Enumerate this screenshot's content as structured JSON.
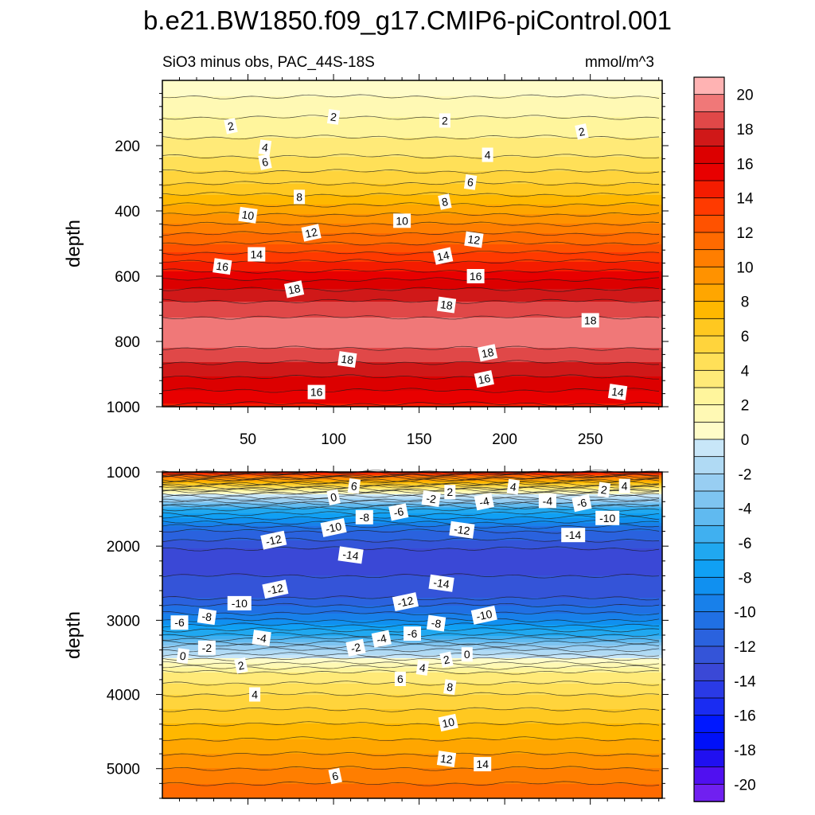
{
  "chart_data": {
    "type": "heatmap",
    "title": "b.e21.BW1850.f09_g17.CMIP6-piControl.001",
    "colorbar": {
      "labels": [
        "20",
        "18",
        "16",
        "14",
        "12",
        "10",
        "8",
        "6",
        "4",
        "2",
        "0",
        "-2",
        "-4",
        "-6",
        "-8",
        "-10",
        "-12",
        "-14",
        "-16",
        "-18",
        "-20"
      ],
      "levels_top_to_bottom": [
        21,
        20,
        19,
        18,
        17,
        16,
        15,
        14,
        13,
        12,
        11,
        10,
        9,
        8,
        7,
        6,
        5,
        4,
        3,
        2,
        1,
        0,
        -1,
        -2,
        -3,
        -4,
        -5,
        -6,
        -7,
        -8,
        -9,
        -10,
        -11,
        -12,
        -13,
        -14,
        -15,
        -16,
        -17,
        -18,
        -19,
        -20,
        -21
      ],
      "colors_top_to_bottom": [
        "#ffb3b3",
        "#f07878",
        "#e04848",
        "#d01818",
        "#dc0000",
        "#e80000",
        "#f41c00",
        "#ff3a00",
        "#ff5200",
        "#ff6a00",
        "#ff7e00",
        "#ff9200",
        "#ffa600",
        "#ffb800",
        "#ffc820",
        "#ffd43c",
        "#ffe058",
        "#ffea78",
        "#fff59c",
        "#fff9b4",
        "#fffcc8",
        "#c8e6f8",
        "#b0daf4",
        "#98cef2",
        "#7ec4f0",
        "#60baf0",
        "#40b0f0",
        "#20a8f0",
        "#10a0f4",
        "#1090f0",
        "#1880ea",
        "#2070e4",
        "#2a62de",
        "#3454d8",
        "#3a48d6",
        "#2a3ae6",
        "#1a2cf2",
        "#0018ff",
        "#0010f8",
        "#2010f0",
        "#5010f0",
        "#7020f0"
      ]
    },
    "panels": [
      {
        "subtitle": "SiO3 minus obs, PAC_44S-18S",
        "units": "mmol/m^3",
        "ylabel": "depth",
        "xlabel": "",
        "xlim": [
          0,
          292
        ],
        "ylim": [
          1000,
          0
        ],
        "xticks": [
          50,
          100,
          150,
          200,
          250
        ],
        "yticks": [
          200,
          400,
          600,
          800,
          1000
        ],
        "profile": {
          "depth": [
            0,
            50,
            100,
            150,
            200,
            250,
            300,
            350,
            400,
            450,
            500,
            550,
            600,
            650,
            700,
            750,
            800,
            850,
            900,
            950,
            1000
          ],
          "value": [
            0.5,
            1.0,
            1.8,
            2.6,
            3.4,
            4.3,
            5.5,
            7.0,
            8.6,
            10.3,
            12.0,
            13.8,
            15.6,
            17.3,
            18.6,
            19.4,
            19.5,
            18.3,
            17.2,
            16.0,
            14.8
          ]
        },
        "contour_labels": [
          {
            "text": "2",
            "x": 40,
            "depth": 140
          },
          {
            "text": "2",
            "x": 100,
            "depth": 112
          },
          {
            "text": "2",
            "x": 165,
            "depth": 123
          },
          {
            "text": "2",
            "x": 245,
            "depth": 157
          },
          {
            "text": "4",
            "x": 60,
            "depth": 205
          },
          {
            "text": "4",
            "x": 190,
            "depth": 228
          },
          {
            "text": "6",
            "x": 60,
            "depth": 250
          },
          {
            "text": "6",
            "x": 180,
            "depth": 312
          },
          {
            "text": "8",
            "x": 80,
            "depth": 357
          },
          {
            "text": "8",
            "x": 165,
            "depth": 372
          },
          {
            "text": "10",
            "x": 50,
            "depth": 413
          },
          {
            "text": "10",
            "x": 140,
            "depth": 430
          },
          {
            "text": "12",
            "x": 87,
            "depth": 467
          },
          {
            "text": "12",
            "x": 182,
            "depth": 488
          },
          {
            "text": "14",
            "x": 55,
            "depth": 533
          },
          {
            "text": "14",
            "x": 164,
            "depth": 538
          },
          {
            "text": "16",
            "x": 35,
            "depth": 570
          },
          {
            "text": "16",
            "x": 183,
            "depth": 600
          },
          {
            "text": "18",
            "x": 77,
            "depth": 640
          },
          {
            "text": "18",
            "x": 166,
            "depth": 688
          },
          {
            "text": "18",
            "x": 250,
            "depth": 735
          },
          {
            "text": "18",
            "x": 190,
            "depth": 835
          },
          {
            "text": "18",
            "x": 108,
            "depth": 855
          },
          {
            "text": "16",
            "x": 90,
            "depth": 955
          },
          {
            "text": "16",
            "x": 188,
            "depth": 915
          },
          {
            "text": "14",
            "x": 266,
            "depth": 955
          }
        ]
      },
      {
        "subtitle": "",
        "units": "",
        "ylabel": "depth",
        "xlabel": "",
        "xlim": [
          0,
          292
        ],
        "ylim": [
          5400,
          1000
        ],
        "xticks": [
          50,
          100,
          150,
          200,
          250
        ],
        "yticks": [
          1000,
          2000,
          3000,
          4000,
          5000
        ],
        "profile": {
          "depth": [
            1000,
            1100,
            1300,
            1500,
            1800,
            2100,
            2400,
            2700,
            3000,
            3200,
            3400,
            3550,
            3700,
            4000,
            4300,
            4600,
            5000,
            5400
          ],
          "value": [
            15,
            9,
            0,
            -6,
            -11,
            -13.5,
            -13,
            -12,
            -9,
            -6,
            -2,
            0.5,
            3,
            5,
            6.5,
            8,
            10,
            12
          ]
        },
        "contour_labels": [
          {
            "text": "0",
            "x": 100,
            "depth": 1340
          },
          {
            "text": "6",
            "x": 112,
            "depth": 1190
          },
          {
            "text": "-8",
            "x": 118,
            "depth": 1610
          },
          {
            "text": "-6",
            "x": 138,
            "depth": 1540
          },
          {
            "text": "-2",
            "x": 157,
            "depth": 1360
          },
          {
            "text": "2",
            "x": 168,
            "depth": 1270
          },
          {
            "text": "-4",
            "x": 188,
            "depth": 1400
          },
          {
            "text": "4",
            "x": 205,
            "depth": 1200
          },
          {
            "text": "-4",
            "x": 225,
            "depth": 1390
          },
          {
            "text": "-6",
            "x": 245,
            "depth": 1420
          },
          {
            "text": "2",
            "x": 258,
            "depth": 1240
          },
          {
            "text": "4",
            "x": 270,
            "depth": 1190
          },
          {
            "text": "-10",
            "x": 100,
            "depth": 1750
          },
          {
            "text": "-12",
            "x": 175,
            "depth": 1780
          },
          {
            "text": "-10",
            "x": 260,
            "depth": 1620
          },
          {
            "text": "-12",
            "x": 65,
            "depth": 1920
          },
          {
            "text": "-14",
            "x": 110,
            "depth": 2120
          },
          {
            "text": "-14",
            "x": 240,
            "depth": 1850
          },
          {
            "text": "-12",
            "x": 66,
            "depth": 2580
          },
          {
            "text": "-14",
            "x": 163,
            "depth": 2500
          },
          {
            "text": "-10",
            "x": 45,
            "depth": 2770
          },
          {
            "text": "-12",
            "x": 142,
            "depth": 2750
          },
          {
            "text": "-8",
            "x": 26,
            "depth": 2950
          },
          {
            "text": "-6",
            "x": 10,
            "depth": 3030
          },
          {
            "text": "-10",
            "x": 188,
            "depth": 2930
          },
          {
            "text": "-8",
            "x": 160,
            "depth": 3040
          },
          {
            "text": "-6",
            "x": 146,
            "depth": 3180
          },
          {
            "text": "-4",
            "x": 128,
            "depth": 3250
          },
          {
            "text": "-4",
            "x": 58,
            "depth": 3240
          },
          {
            "text": "-2",
            "x": 26,
            "depth": 3370
          },
          {
            "text": "-2",
            "x": 113,
            "depth": 3370
          },
          {
            "text": "0",
            "x": 12,
            "depth": 3480
          },
          {
            "text": "0",
            "x": 178,
            "depth": 3460
          },
          {
            "text": "2",
            "x": 166,
            "depth": 3530
          },
          {
            "text": "4",
            "x": 152,
            "depth": 3640
          },
          {
            "text": "6",
            "x": 139,
            "depth": 3790
          },
          {
            "text": "2",
            "x": 46,
            "depth": 3610
          },
          {
            "text": "8",
            "x": 168,
            "depth": 3900
          },
          {
            "text": "4",
            "x": 54,
            "depth": 4000
          },
          {
            "text": "10",
            "x": 167,
            "depth": 4380
          },
          {
            "text": "12",
            "x": 166,
            "depth": 4870
          },
          {
            "text": "14",
            "x": 187,
            "depth": 4940
          },
          {
            "text": "6",
            "x": 101,
            "depth": 5100
          }
        ]
      }
    ]
  }
}
